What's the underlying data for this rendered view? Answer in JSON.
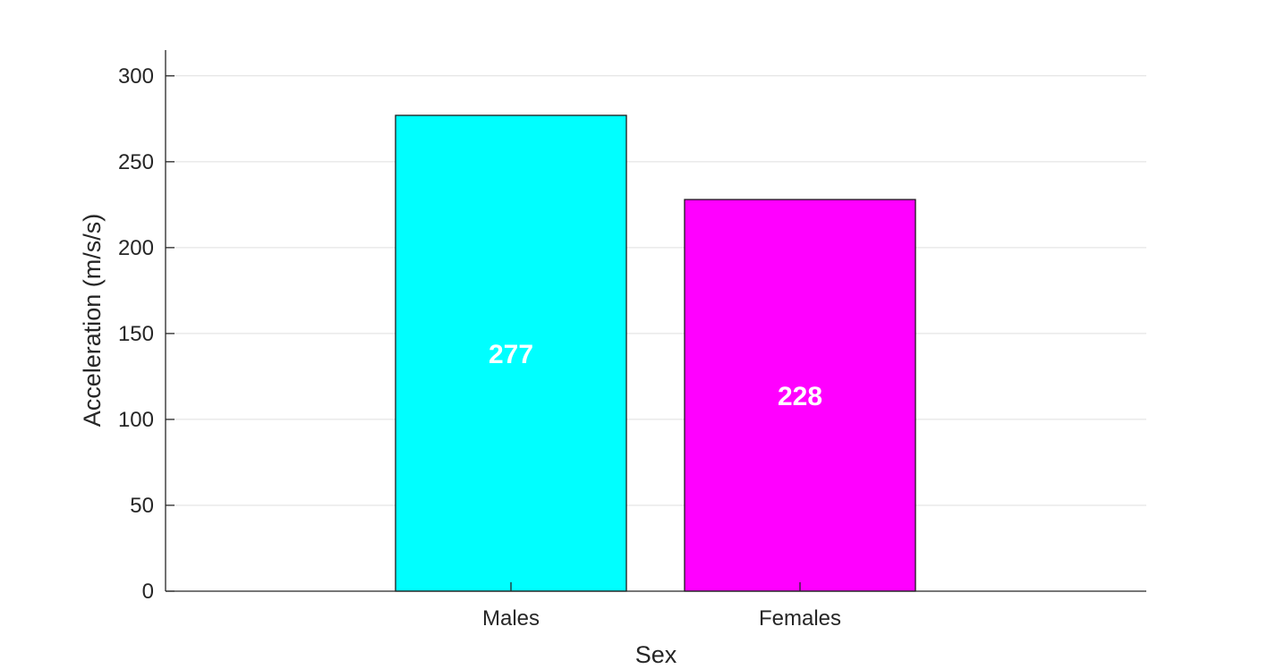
{
  "chart_data": {
    "type": "bar",
    "title": "",
    "xlabel": "Sex",
    "ylabel": "Acceleration (m/s/s)",
    "categories": [
      "Males",
      "Females"
    ],
    "values": [
      277,
      228
    ],
    "data_labels": [
      "277",
      "228"
    ],
    "bar_colors": [
      "#00ffff",
      "#ff00ff"
    ],
    "ylim": [
      0,
      315
    ],
    "yticks": [
      0,
      50,
      100,
      150,
      200,
      250,
      300
    ],
    "ytick_labels": [
      "0",
      "50",
      "100",
      "150",
      "200",
      "250",
      "300"
    ],
    "grid": "horizontal",
    "legend": "none"
  }
}
